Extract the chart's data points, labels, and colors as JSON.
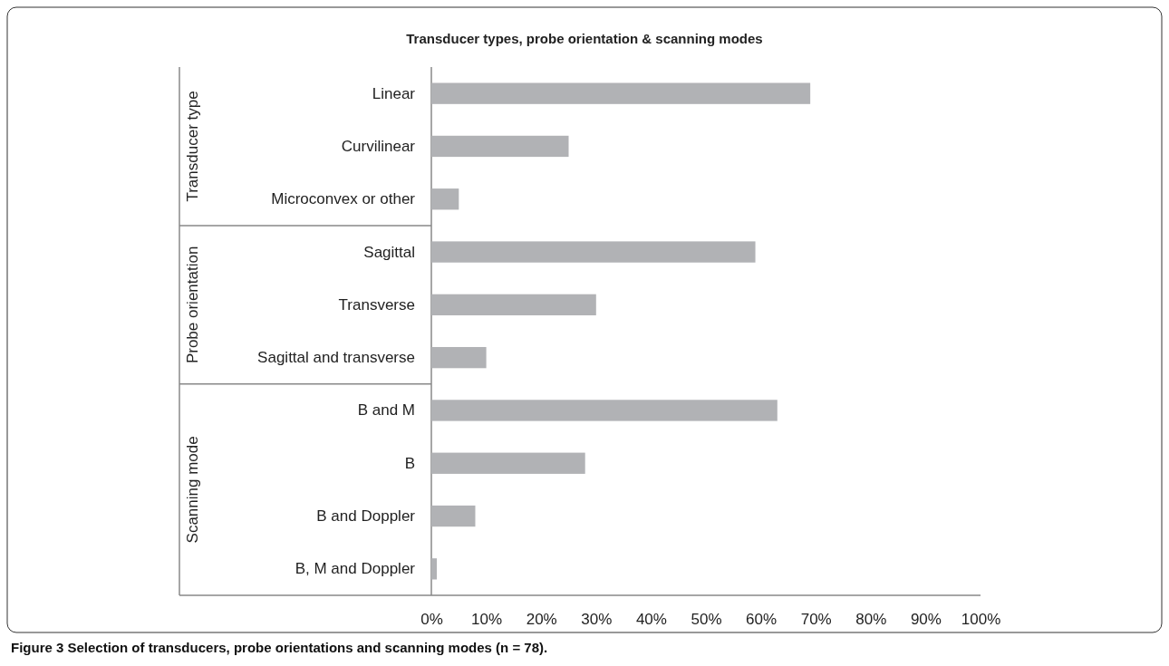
{
  "chart_data": {
    "type": "bar",
    "orientation": "horizontal",
    "title": "Transducer types, probe orientation & scanning modes",
    "categories": [
      "Linear",
      "Curvilinear",
      "Microconvex or other",
      "Sagittal",
      "Transverse",
      "Sagittal and transverse",
      "B and M",
      "B",
      "B and Doppler",
      "B, M and Doppler"
    ],
    "values": [
      69,
      25,
      5,
      59,
      30,
      10,
      63,
      28,
      8,
      1
    ],
    "color": "#b1b2b5",
    "xlim": [
      0,
      100
    ],
    "xticks": [
      {
        "value": 0,
        "label": "0%"
      },
      {
        "value": 10,
        "label": "10%"
      },
      {
        "value": 20,
        "label": "20%"
      },
      {
        "value": 30,
        "label": "30%"
      },
      {
        "value": 40,
        "label": "40%"
      },
      {
        "value": 50,
        "label": "50%"
      },
      {
        "value": 60,
        "label": "60%"
      },
      {
        "value": 70,
        "label": "70%"
      },
      {
        "value": 80,
        "label": "80%"
      },
      {
        "value": 90,
        "label": "90%"
      },
      {
        "value": 100,
        "label": "100%"
      }
    ],
    "grid": false,
    "annotations": [
      "Transducer type",
      "Probe orientation",
      "Scanning mode",
      "Figure 3 Selection of transducers, probe orientations and scanning modes (n = 78)."
    ]
  }
}
